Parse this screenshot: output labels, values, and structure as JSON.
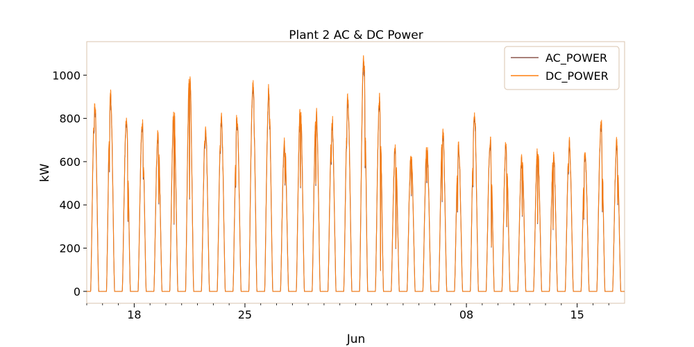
{
  "chart_data": {
    "type": "line",
    "title": "Plant 2 AC & DC Power",
    "xlabel": "Jun",
    "ylabel": "kW",
    "x_start": "2020-05-15",
    "x_end": "2020-06-17 23:45",
    "xlim": [
      "2020-05-15",
      "2020-06-18"
    ],
    "ylim": [
      -55,
      1155
    ],
    "yticks": [
      0,
      200,
      400,
      600,
      800,
      1000
    ],
    "xticks": [
      {
        "date": "2020-05-18",
        "label": "18"
      },
      {
        "date": "2020-05-25",
        "label": "25"
      },
      {
        "date": "2020-06-08",
        "label": "08"
      },
      {
        "date": "2020-06-15",
        "label": "15"
      }
    ],
    "minor_xticks": [
      "2020-05-15",
      "2020-05-16",
      "2020-05-17",
      "2020-05-19",
      "2020-05-20",
      "2020-05-21",
      "2020-05-22",
      "2020-05-23",
      "2020-05-24",
      "2020-05-26",
      "2020-05-27",
      "2020-05-28",
      "2020-05-29",
      "2020-05-30",
      "2020-05-31",
      "2020-06-01",
      "2020-06-02",
      "2020-06-03",
      "2020-06-04",
      "2020-06-05",
      "2020-06-06",
      "2020-06-07",
      "2020-06-09",
      "2020-06-10",
      "2020-06-11",
      "2020-06-12",
      "2020-06-13",
      "2020-06-14",
      "2020-06-16",
      "2020-06-17"
    ],
    "legend": {
      "position": "top-right",
      "entries": [
        "AC_POWER",
        "DC_POWER"
      ]
    },
    "grid": false,
    "series": [
      {
        "name": "AC_POWER",
        "color": "#8c564b"
      },
      {
        "name": "DC_POWER",
        "color": "#ff7f0e"
      }
    ],
    "daily": [
      {
        "date": "2020-05-15",
        "peak": 880,
        "low": 780
      },
      {
        "date": "2020-05-16",
        "peak": 915,
        "low": 640
      },
      {
        "date": "2020-05-17",
        "peak": 810,
        "low": 400
      },
      {
        "date": "2020-05-18",
        "peak": 780,
        "low": 620
      },
      {
        "date": "2020-05-19",
        "peak": 740,
        "low": 420
      },
      {
        "date": "2020-05-20",
        "peak": 845,
        "low": 310
      },
      {
        "date": "2020-05-21",
        "peak": 1050,
        "low": 400
      },
      {
        "date": "2020-05-22",
        "peak": 760,
        "low": 700
      },
      {
        "date": "2020-05-23",
        "peak": 810,
        "low": 700
      },
      {
        "date": "2020-05-24",
        "peak": 800,
        "low": 580
      },
      {
        "date": "2020-05-25",
        "peak": 985,
        "low": 920
      },
      {
        "date": "2020-05-26",
        "peak": 940,
        "low": 880
      },
      {
        "date": "2020-05-27",
        "peak": 710,
        "low": 530
      },
      {
        "date": "2020-05-28",
        "peak": 880,
        "low": 480
      },
      {
        "date": "2020-05-29",
        "peak": 860,
        "low": 490
      },
      {
        "date": "2020-05-30",
        "peak": 795,
        "low": 650
      },
      {
        "date": "2020-05-31",
        "peak": 895,
        "low": 780
      },
      {
        "date": "2020-06-01",
        "peak": 1095,
        "low": 760
      },
      {
        "date": "2020-06-02",
        "peak": 900,
        "low": 60
      },
      {
        "date": "2020-06-03",
        "peak": 680,
        "low": 200
      },
      {
        "date": "2020-06-04",
        "peak": 650,
        "low": 450
      },
      {
        "date": "2020-06-05",
        "peak": 690,
        "low": 500
      },
      {
        "date": "2020-06-06",
        "peak": 760,
        "low": 430
      },
      {
        "date": "2020-06-07",
        "peak": 680,
        "low": 400
      },
      {
        "date": "2020-06-08",
        "peak": 840,
        "low": 620
      },
      {
        "date": "2020-06-09",
        "peak": 700,
        "low": 230
      },
      {
        "date": "2020-06-10",
        "peak": 690,
        "low": 320
      },
      {
        "date": "2020-06-11",
        "peak": 640,
        "low": 350
      },
      {
        "date": "2020-06-12",
        "peak": 680,
        "low": 280
      },
      {
        "date": "2020-06-13",
        "peak": 650,
        "low": 300
      },
      {
        "date": "2020-06-14",
        "peak": 700,
        "low": 580
      },
      {
        "date": "2020-06-15",
        "peak": 640,
        "low": 400
      },
      {
        "date": "2020-06-16",
        "peak": 780,
        "low": 450
      },
      {
        "date": "2020-06-17",
        "peak": 700,
        "low": 450
      }
    ]
  }
}
